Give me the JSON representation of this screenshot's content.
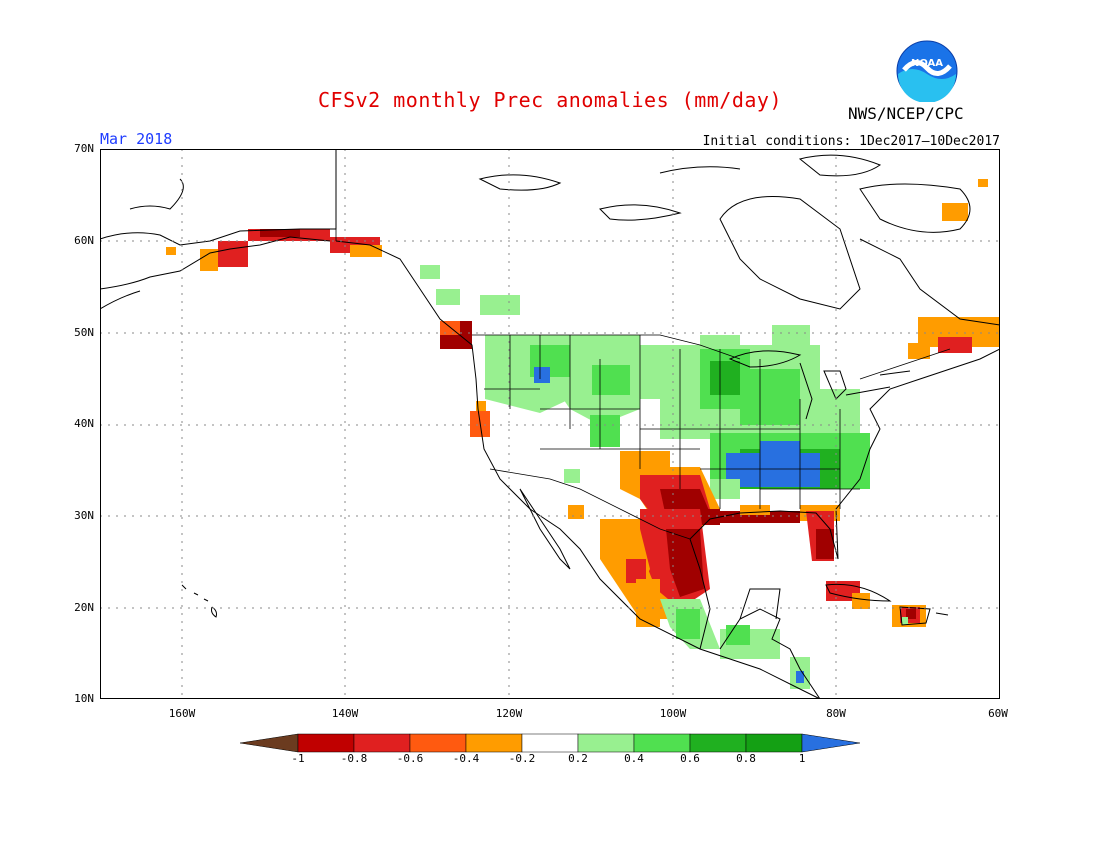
{
  "header": {
    "title": "CFSv2 monthly Prec anomalies (mm/day)",
    "agency": "NWS/NCEP/CPC",
    "month": "Mar 2018",
    "initial_conditions": "Initial conditions: 1Dec2017–10Dec2017",
    "logo_text": "NOAA"
  },
  "map": {
    "lon_range": [
      -170,
      -60
    ],
    "lat_range": [
      10,
      70
    ],
    "lat_ticks": [
      "10N",
      "20N",
      "30N",
      "40N",
      "50N",
      "60N",
      "70N"
    ],
    "lon_ticks": [
      "160W",
      "140W",
      "120W",
      "100W",
      "80W",
      "60W"
    ],
    "grid": "dotted, every 10 degrees"
  },
  "colorbar": {
    "labels": [
      "-1",
      "-0.8",
      "-0.6",
      "-0.4",
      "-0.2",
      "0.2",
      "0.4",
      "0.6",
      "0.8",
      "1"
    ],
    "colors": [
      "#6b3b1f",
      "#c00000",
      "#e02020",
      "#ff5a10",
      "#ff9c00",
      "#ffffff",
      "#98f090",
      "#50e050",
      "#20b020",
      "#14a014",
      "#2870e0"
    ]
  },
  "anomaly_colors": {
    "dry_strong": "#a00000",
    "dry": "#e02020",
    "dry_mid": "#ff5a10",
    "dry_weak": "#ff9c00",
    "wet_weak": "#98f090",
    "wet": "#50e050",
    "wet_strong": "#20b020",
    "wet_max": "#2870e0"
  }
}
